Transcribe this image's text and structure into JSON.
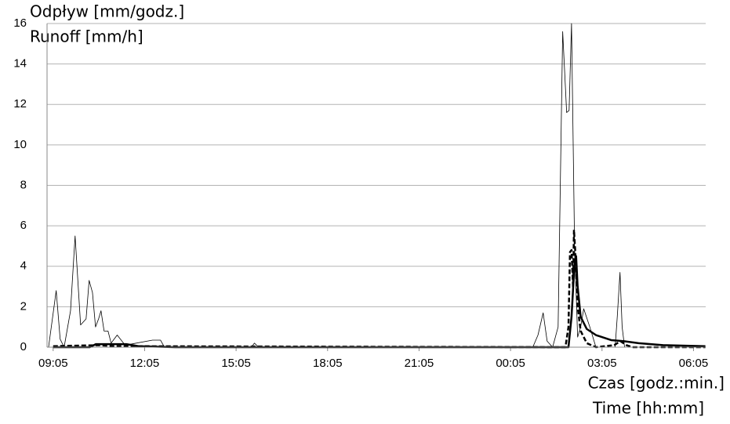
{
  "chart_data": {
    "type": "line",
    "ylabel": [
      "Odpływ [mm/godz.]",
      "Runoff [mm/h]"
    ],
    "xlabel": [
      "Czas [godz.:min.]",
      "Time [hh:mm]"
    ],
    "xlim": [
      -0.2,
      21.4
    ],
    "ylim": [
      0,
      16
    ],
    "xticks": [
      {
        "value": 0,
        "label": "09:05"
      },
      {
        "value": 3,
        "label": "12:05"
      },
      {
        "value": 6,
        "label": "15:05"
      },
      {
        "value": 9,
        "label": "18:05"
      },
      {
        "value": 12,
        "label": "21:05"
      },
      {
        "value": 15,
        "label": "00:05"
      },
      {
        "value": 18,
        "label": "03:05"
      },
      {
        "value": 21,
        "label": "06:05"
      }
    ],
    "yticks": [
      0,
      2,
      4,
      6,
      8,
      10,
      12,
      14,
      16
    ],
    "grid": true,
    "series": [
      {
        "color": "#000000",
        "width": 0.8,
        "dash": false,
        "x": [
          -0.15,
          0.1,
          0.23,
          0.36,
          0.57,
          0.72,
          0.9,
          1.08,
          1.18,
          1.29,
          1.39,
          1.49,
          1.57,
          1.67,
          1.8,
          1.9,
          2.1,
          2.36,
          3.26,
          3.52,
          3.65,
          6.5,
          6.6,
          6.74,
          15.73,
          15.9,
          16.07,
          16.2,
          16.38,
          16.56,
          16.71,
          16.84,
          16.92,
          17.0,
          17.1,
          17.2,
          17.3,
          17.4,
          17.6,
          17.8,
          18.43,
          18.5,
          18.59,
          18.66,
          18.74,
          21.39
        ],
        "values": [
          0,
          2.8,
          0.4,
          0,
          1.8,
          5.5,
          1.1,
          1.4,
          3.3,
          2.7,
          1.0,
          1.4,
          1.8,
          0.8,
          0.8,
          0.2,
          0.6,
          0.1,
          0.35,
          0.35,
          0,
          0,
          0.2,
          0,
          0,
          0.6,
          1.7,
          0.3,
          0,
          1.0,
          15.6,
          11.6,
          11.7,
          16,
          5,
          0.5,
          1.0,
          1.9,
          1.0,
          0,
          0,
          1.5,
          3.7,
          1.0,
          0,
          0
        ]
      },
      {
        "color": "#000000",
        "width": 2.5,
        "dash": false,
        "x": [
          0,
          1.2,
          1.4,
          2.4,
          2.8,
          4,
          16.9,
          17.0,
          17.1,
          17.15,
          17.2,
          17.3,
          17.5,
          17.8,
          18.3,
          18.7,
          19.2,
          20,
          21.39
        ],
        "values": [
          0,
          0,
          0.15,
          0.15,
          0.05,
          0,
          0,
          1.5,
          4.2,
          4.5,
          3.0,
          1.5,
          0.9,
          0.6,
          0.35,
          0.3,
          0.2,
          0.1,
          0.05
        ]
      },
      {
        "color": "#000000",
        "width": 2.5,
        "dash": true,
        "x": [
          0,
          1.5,
          2,
          16.8,
          16.9,
          16.95,
          17.0,
          17.05,
          17.08,
          17.12,
          17.2,
          17.3,
          17.5,
          17.8,
          18.4,
          18.6,
          18.8,
          19,
          21.39
        ],
        "values": [
          0.05,
          0.1,
          0.05,
          0,
          1.0,
          4.7,
          4.8,
          3.0,
          5.8,
          4.8,
          2.0,
          0.8,
          0.2,
          0,
          0.1,
          0.3,
          0.1,
          0,
          0
        ]
      }
    ]
  }
}
